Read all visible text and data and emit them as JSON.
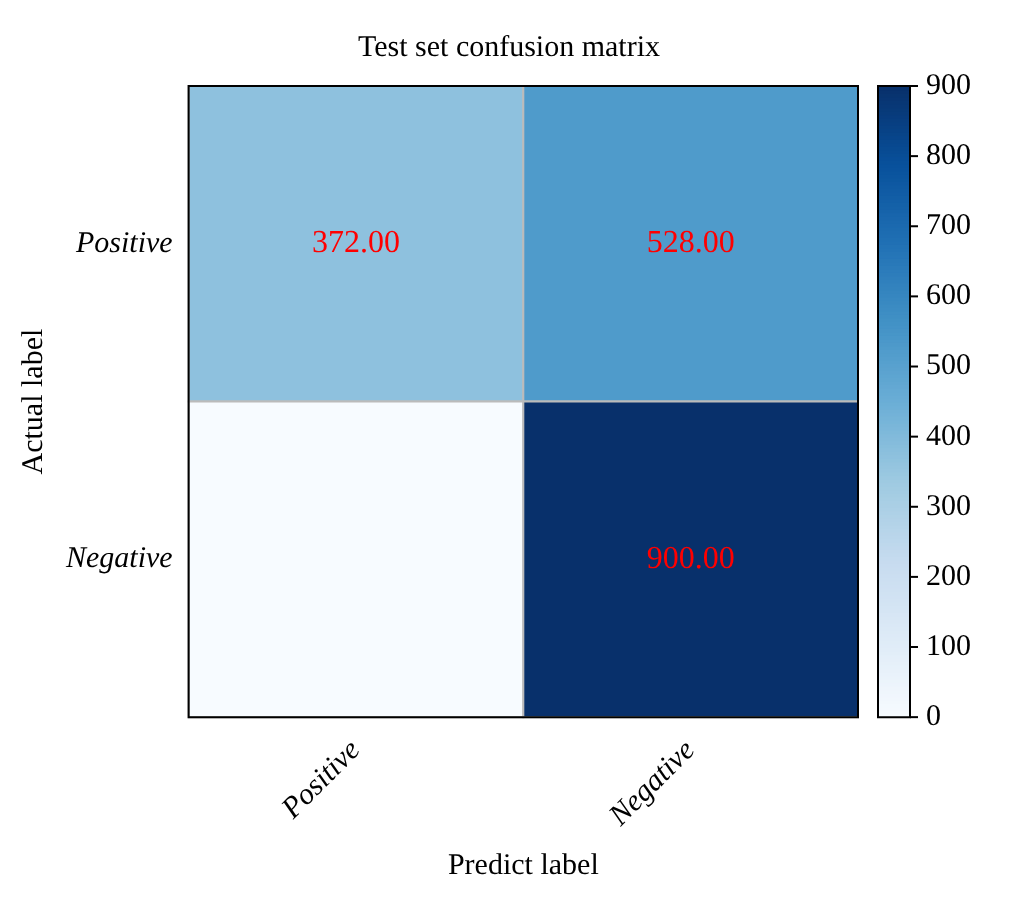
{
  "chart_data": {
    "type": "heatmap",
    "title": "Test set confusion matrix",
    "xlabel": "Predict label",
    "ylabel": "Actual label",
    "categories": [
      "Positive",
      "Negative"
    ],
    "y_categories": [
      "Positive",
      "Negative"
    ],
    "cells": [
      [
        372,
        528
      ],
      [
        0,
        900
      ]
    ],
    "cell_labels": [
      [
        "372.00",
        "528.00"
      ],
      [
        null,
        "900.00"
      ]
    ],
    "clim": [
      0,
      900
    ],
    "cticks": [
      0,
      100,
      200,
      300,
      400,
      500,
      600,
      700,
      800,
      900
    ]
  }
}
